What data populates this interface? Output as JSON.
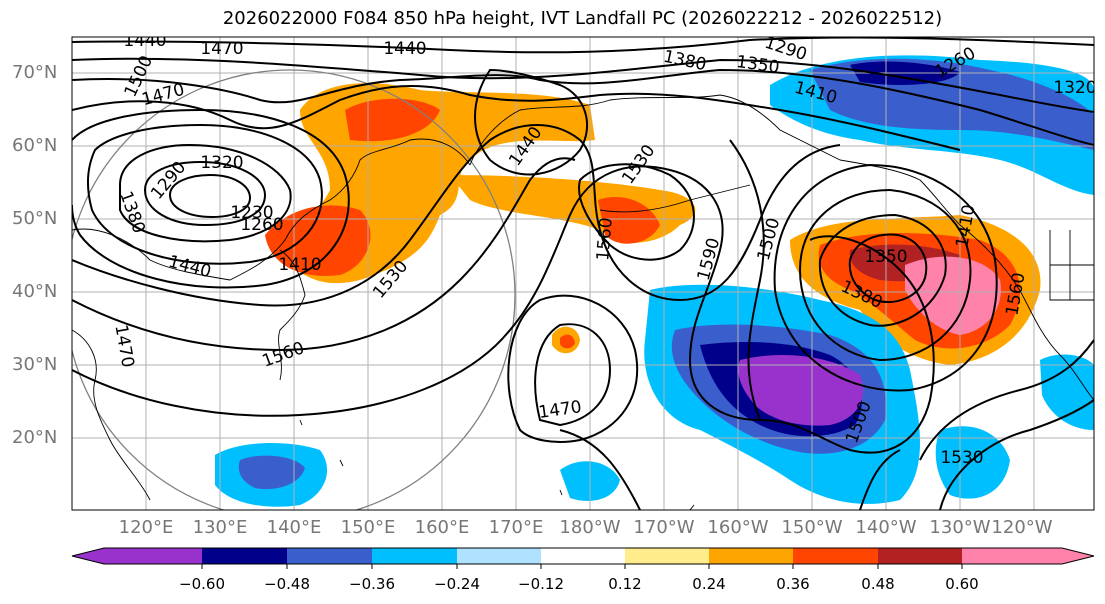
{
  "title": "2026022000 F084 850 hPa height, IVT Landfall PC (2026022212 - 2026022512)",
  "lat_labels": [
    "70°N",
    "60°N",
    "50°N",
    "40°N",
    "30°N",
    "20°N"
  ],
  "lon_labels": [
    "120°E",
    "130°E",
    "140°E",
    "150°E",
    "160°E",
    "170°E",
    "180°W",
    "170°W",
    "160°W",
    "150°W",
    "140°W",
    "130°W",
    "120°W"
  ],
  "contour_labels": [
    "1440",
    "1470",
    "1500",
    "1470",
    "1440",
    "1380",
    "1350",
    "1290",
    "1260",
    "1320",
    "1410",
    "1320",
    "1290",
    "1230",
    "1260",
    "1380",
    "1440",
    "1410",
    "1530",
    "1440",
    "1530",
    "1560",
    "1590",
    "1500",
    "1350",
    "1380",
    "1410",
    "1560",
    "1560",
    "1470",
    "1470",
    "1500",
    "1530"
  ],
  "colorbar": {
    "ticks": [
      "−0.60",
      "−0.48",
      "−0.36",
      "−0.24",
      "−0.12",
      "0.12",
      "0.24",
      "0.36",
      "0.48",
      "0.60"
    ],
    "colors": [
      "#9932cc",
      "#00008b",
      "#3a5fcd",
      "#00bfff",
      "#b0e2ff",
      "#ffffff",
      "#ffec8b",
      "#ffa500",
      "#ff4500",
      "#b22222",
      "#ff82ab"
    ]
  }
}
